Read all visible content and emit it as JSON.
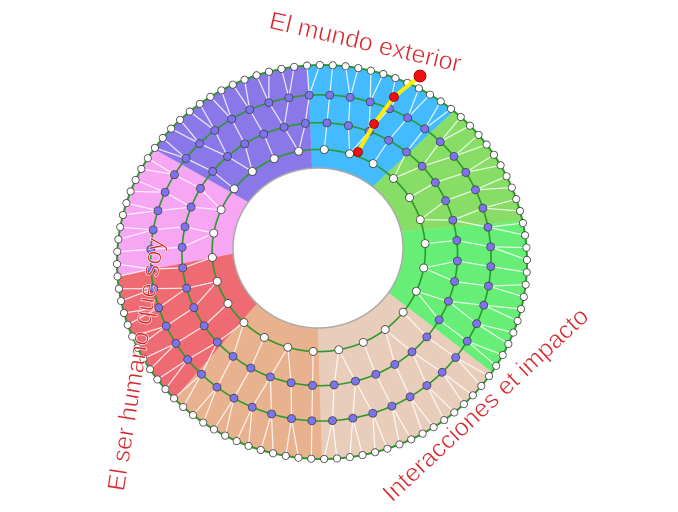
{
  "labels": {
    "top": "El mundo exterior",
    "right": "Interacciones et impacto",
    "left": "El ser humano que soy"
  },
  "sectors": [
    {
      "color": "#44bbff"
    },
    {
      "color": "#88dd66"
    },
    {
      "color": "#66ee77"
    },
    {
      "color": "#e9cdbb"
    },
    {
      "color": "#e9b28f"
    },
    {
      "color": "#ef6b73"
    },
    {
      "color": "#f6a6f2"
    },
    {
      "color": "#8a78e9"
    }
  ],
  "colors": {
    "ring": "#2a9a2a",
    "node_inner": "#7b73f0",
    "node_edge": "#ffffff",
    "highlight_path": "#ffee00",
    "highlight_node": "#ee1111"
  }
}
